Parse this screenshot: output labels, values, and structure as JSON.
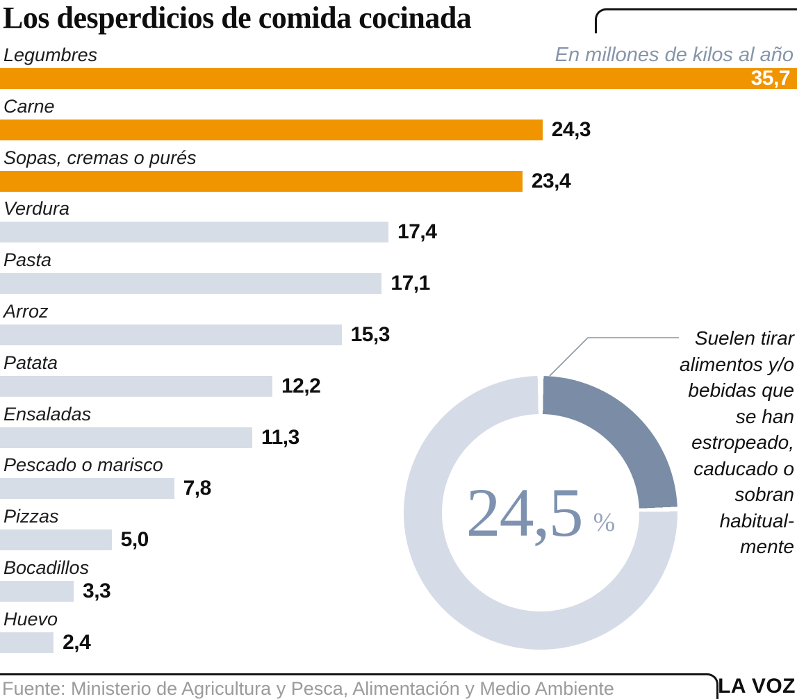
{
  "title": "Los desperdicios de comida cocinada",
  "subtitle": "En millones de kilos al año",
  "footer": {
    "source": "Fuente: Ministerio de Agricultura y Pesca, Alimentación y Medio Ambiente",
    "brand": "LA VOZ"
  },
  "colors": {
    "highlight_bar": "#f09400",
    "base_bar": "#d7dde7",
    "value_on_bar": "#ffffff",
    "subtitle_text": "#8795a9",
    "donut_segment": "#7a8ca6",
    "donut_ring": "#d5dbe7",
    "donut_number": "#7e92b0",
    "donut_unit_color": "#98a5be",
    "callout_line": "#8a96a5",
    "source_text": "#9b9b9b"
  },
  "chart_data": [
    {
      "type": "bar",
      "orientation": "horizontal",
      "title": "Los desperdicios de comida cocinada",
      "unit_note": "En millones de kilos al año",
      "max": 35.7,
      "categories": [
        "Legumbres",
        "Carne",
        "Sopas, cremas o purés",
        "Verdura",
        "Pasta",
        "Arroz",
        "Patata",
        "Ensaladas",
        "Pescado o marisco",
        "Pizzas",
        "Bocadillos",
        "Huevo"
      ],
      "values": [
        35.7,
        24.3,
        23.4,
        17.4,
        17.1,
        15.3,
        12.2,
        11.3,
        7.8,
        5.0,
        3.3,
        2.4
      ],
      "bars": [
        {
          "label": "Legumbres",
          "value": 35.7,
          "display": "35,7",
          "highlight": true,
          "value_inside": true
        },
        {
          "label": "Carne",
          "value": 24.3,
          "display": "24,3",
          "highlight": true,
          "value_inside": false
        },
        {
          "label": "Sopas, cremas o purés",
          "value": 23.4,
          "display": "23,4",
          "highlight": true,
          "value_inside": false
        },
        {
          "label": "Verdura",
          "value": 17.4,
          "display": "17,4",
          "highlight": false,
          "value_inside": false
        },
        {
          "label": "Pasta",
          "value": 17.1,
          "display": "17,1",
          "highlight": false,
          "value_inside": false
        },
        {
          "label": "Arroz",
          "value": 15.3,
          "display": "15,3",
          "highlight": false,
          "value_inside": false
        },
        {
          "label": "Patata",
          "value": 12.2,
          "display": "12,2",
          "highlight": false,
          "value_inside": false
        },
        {
          "label": "Ensaladas",
          "value": 11.3,
          "display": "11,3",
          "highlight": false,
          "value_inside": false
        },
        {
          "label": "Pescado o marisco",
          "value": 7.8,
          "display": "7,8",
          "highlight": false,
          "value_inside": false
        },
        {
          "label": "Pizzas",
          "value": 5.0,
          "display": "5,0",
          "highlight": false,
          "value_inside": false
        },
        {
          "label": "Bocadillos",
          "value": 3.3,
          "display": "3,3",
          "highlight": false,
          "value_inside": false
        },
        {
          "label": "Huevo",
          "value": 2.4,
          "display": "2,4",
          "highlight": false,
          "value_inside": false
        }
      ]
    },
    {
      "type": "donut",
      "value": 24.5,
      "value_label": "24,5",
      "unit": "%",
      "annotation": "Suelen tirar alimentos y/o bebidas que se han estropeado, caducado o sobran habitualmente",
      "annotation_lines": [
        "Suelen tirar",
        "alimentos y/o",
        "bebidas que",
        "se han",
        "estropeado,",
        "caducado o",
        "sobran",
        "habitual-",
        "mente"
      ]
    }
  ]
}
